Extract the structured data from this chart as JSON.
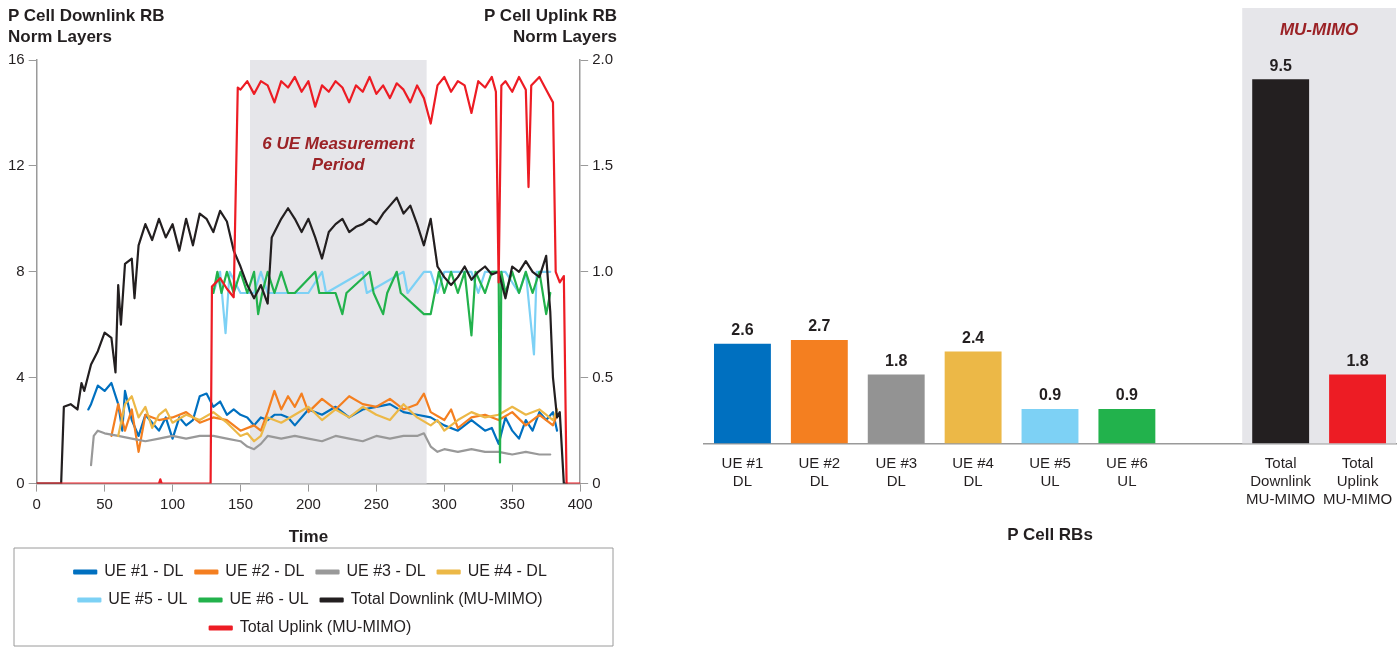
{
  "chart_data": [
    {
      "type": "line",
      "xlabel": "Time",
      "ylabel": "P Cell Downlink RB Norm Layers",
      "y2label": "P Cell Uplink RB Norm Layers",
      "xlim": [
        0,
        400
      ],
      "xticks": [
        0,
        50,
        100,
        150,
        200,
        250,
        300,
        350,
        400
      ],
      "ylim": [
        0,
        16
      ],
      "yticks": [
        0,
        4,
        8,
        12,
        16
      ],
      "y2lim": [
        0,
        2
      ],
      "y2ticks": [
        0,
        0.5,
        {
          "value": 1,
          "label": "1.0"
        },
        1.5,
        {
          "value": 2,
          "label": "2.0"
        }
      ],
      "bands": [
        {
          "axis": "x",
          "from": 157,
          "to": 287,
          "label": "6 UE Measurement Period",
          "color": "#e6e6ea"
        }
      ],
      "legend": "bottom",
      "marker": "none",
      "series": [
        {
          "name": "UE #1 - DL",
          "color": "#0070c0",
          "x": [
            38,
            40,
            45,
            50,
            55,
            60,
            63,
            65,
            70,
            75,
            80,
            85,
            90,
            95,
            100,
            105,
            110,
            115,
            120,
            125,
            130,
            135,
            140,
            145,
            150,
            155,
            160,
            165,
            170,
            175,
            180,
            185,
            190,
            200,
            210,
            220,
            230,
            240,
            250,
            260,
            270,
            280,
            290,
            300,
            310,
            320,
            330,
            335,
            340,
            345,
            350,
            355,
            360,
            365,
            370,
            375,
            380,
            383
          ],
          "values": [
            2.8,
            3.0,
            3.7,
            3.5,
            3.8,
            3.0,
            2.0,
            3.5,
            2.4,
            1.8,
            2.6,
            2.3,
            2.0,
            2.5,
            1.7,
            2.5,
            2.2,
            2.4,
            3.3,
            3.4,
            2.9,
            3.1,
            2.6,
            2.8,
            2.6,
            2.5,
            2.2,
            2.5,
            2.4,
            2.6,
            2.6,
            2.5,
            2.2,
            2.8,
            2.6,
            2.9,
            2.5,
            2.8,
            2.9,
            3.0,
            2.7,
            2.6,
            2.5,
            2.2,
            2.0,
            2.4,
            2.0,
            2.1,
            1.5,
            2.5,
            2.0,
            1.7,
            2.4,
            2.0,
            2.7,
            2.4,
            2.7,
            2.0
          ]
        },
        {
          "name": "UE #2 - DL",
          "color": "#f47f20",
          "x": [
            55,
            60,
            65,
            70,
            75,
            80,
            90,
            100,
            110,
            120,
            130,
            140,
            150,
            160,
            165,
            170,
            175,
            180,
            185,
            190,
            195,
            200,
            210,
            220,
            230,
            240,
            250,
            260,
            270,
            280,
            285,
            290,
            300,
            305,
            310,
            320,
            330,
            340,
            350,
            360,
            370,
            380,
            383
          ],
          "values": [
            1.8,
            3.0,
            2.0,
            2.8,
            1.2,
            2.6,
            2.4,
            2.5,
            2.7,
            2.3,
            2.5,
            2.4,
            2.0,
            2.2,
            2.0,
            2.7,
            3.5,
            2.8,
            3.3,
            2.9,
            3.4,
            2.7,
            3.2,
            2.8,
            3.3,
            3.0,
            2.9,
            3.2,
            2.8,
            3.0,
            3.4,
            2.7,
            2.4,
            2.8,
            2.1,
            2.5,
            2.6,
            2.4,
            2.7,
            2.2,
            2.6,
            2.2,
            2.6
          ]
        },
        {
          "name": "UE #3 - DL",
          "color": "#999999",
          "x": [
            40,
            42,
            45,
            50,
            60,
            70,
            80,
            90,
            100,
            110,
            120,
            130,
            140,
            150,
            155,
            160,
            165,
            170,
            180,
            190,
            200,
            210,
            220,
            230,
            240,
            250,
            260,
            270,
            280,
            285,
            290,
            295,
            300,
            310,
            320,
            330,
            340,
            350,
            360,
            370,
            378
          ],
          "values": [
            0.7,
            1.8,
            2.0,
            1.9,
            1.8,
            1.7,
            1.6,
            1.7,
            1.8,
            1.7,
            1.8,
            1.8,
            1.7,
            1.6,
            1.4,
            1.3,
            1.5,
            1.8,
            1.7,
            1.8,
            1.7,
            1.6,
            1.8,
            1.7,
            1.6,
            1.8,
            1.7,
            1.8,
            1.8,
            1.9,
            1.4,
            1.2,
            1.3,
            1.2,
            1.3,
            1.2,
            1.2,
            1.1,
            1.2,
            1.1,
            1.1
          ]
        },
        {
          "name": "UE #4 - DL",
          "color": "#ecb847",
          "x": [
            60,
            65,
            70,
            75,
            80,
            85,
            90,
            95,
            100,
            110,
            120,
            130,
            140,
            150,
            155,
            160,
            165,
            170,
            180,
            190,
            200,
            210,
            220,
            230,
            240,
            250,
            260,
            270,
            280,
            290,
            295,
            300,
            310,
            320,
            330,
            340,
            350,
            360,
            370,
            380,
            383
          ],
          "values": [
            1.8,
            3.0,
            3.3,
            2.5,
            2.9,
            2.1,
            2.6,
            2.8,
            2.3,
            2.6,
            2.4,
            2.7,
            2.3,
            1.8,
            1.9,
            1.6,
            1.8,
            2.5,
            2.3,
            2.6,
            2.9,
            2.4,
            2.8,
            2.5,
            2.9,
            2.6,
            2.4,
            3.0,
            2.5,
            2.2,
            2.4,
            2.0,
            2.4,
            2.7,
            2.5,
            2.6,
            2.9,
            2.6,
            2.8,
            2.4,
            2.8
          ]
        },
        {
          "name": "UE #5 - UL",
          "color": "#7dd1f5",
          "axis": "y2",
          "x": [
            130,
            135,
            139,
            142,
            150,
            160,
            165,
            170,
            200,
            210,
            213,
            240,
            243,
            270,
            273,
            285,
            290,
            295,
            300,
            320,
            325,
            330,
            345,
            355,
            360,
            366,
            368,
            378
          ],
          "values": [
            0.9,
            1.0,
            0.71,
            1.0,
            0.9,
            0.9,
            1.0,
            0.9,
            0.9,
            1.0,
            0.9,
            1.0,
            0.9,
            1.0,
            0.9,
            1.0,
            1.0,
            0.9,
            1.0,
            1.0,
            0.9,
            1.0,
            1.0,
            0.9,
            1.0,
            0.61,
            1.0,
            1.0
          ]
        },
        {
          "name": "UE #6 - UL",
          "color": "#22b24c",
          "axis": "y2",
          "x": [
            130,
            133,
            136,
            140,
            145,
            150,
            155,
            160,
            163,
            166,
            170,
            175,
            180,
            185,
            190,
            205,
            208,
            220,
            225,
            228,
            245,
            248,
            255,
            258,
            265,
            268,
            285,
            290,
            293,
            296,
            300,
            305,
            310,
            315,
            320,
            323,
            330,
            335,
            340,
            341,
            342,
            345,
            350,
            355,
            360,
            365,
            370,
            375,
            378
          ],
          "values": [
            0.9,
            1.0,
            0.9,
            1.0,
            0.9,
            1.0,
            0.9,
            1.0,
            0.8,
            0.9,
            1.0,
            0.9,
            1.0,
            0.9,
            0.9,
            1.0,
            0.9,
            0.9,
            0.8,
            0.9,
            1.0,
            0.9,
            0.8,
            0.9,
            1.0,
            0.9,
            0.8,
            0.8,
            0.9,
            1.0,
            0.9,
            1.0,
            0.9,
            1.0,
            0.7,
            1.0,
            0.9,
            1.0,
            1.0,
            0.1,
            1.0,
            0.9,
            1.0,
            0.9,
            1.0,
            0.9,
            1.0,
            0.8,
            0.9
          ]
        },
        {
          "name": "Total Downlink (MU-MIMO)",
          "color": "#231f20",
          "x": [
            0,
            18,
            20,
            25,
            30,
            33,
            35,
            40,
            45,
            50,
            55,
            58,
            60,
            62,
            65,
            70,
            72,
            75,
            80,
            85,
            90,
            95,
            100,
            105,
            110,
            115,
            120,
            125,
            130,
            135,
            140,
            145,
            150,
            155,
            160,
            165,
            170,
            173,
            180,
            185,
            190,
            195,
            200,
            205,
            210,
            215,
            220,
            225,
            230,
            235,
            240,
            245,
            250,
            255,
            260,
            265,
            270,
            275,
            280,
            285,
            290,
            295,
            300,
            305,
            310,
            315,
            320,
            325,
            330,
            335,
            340,
            345,
            350,
            355,
            360,
            365,
            370,
            375,
            378,
            380,
            383,
            385,
            388,
            390
          ],
          "values": [
            0,
            0,
            2.9,
            3.0,
            2.8,
            3.8,
            3.5,
            4.5,
            5.0,
            5.7,
            5.5,
            4.2,
            7.5,
            6.0,
            8.3,
            8.5,
            7.0,
            9.0,
            9.8,
            9.2,
            10.0,
            9.3,
            9.8,
            8.8,
            10.0,
            9.0,
            10.2,
            10.0,
            9.5,
            10.3,
            9.9,
            8.8,
            8.2,
            7.5,
            7.0,
            7.5,
            6.8,
            9.3,
            10.0,
            10.4,
            10.0,
            9.5,
            10.0,
            9.3,
            8.5,
            9.5,
            9.8,
            10.0,
            9.5,
            9.7,
            9.8,
            10.0,
            9.8,
            10.2,
            10.5,
            10.8,
            10.2,
            10.5,
            9.8,
            9.0,
            10.0,
            8.2,
            7.8,
            7.5,
            7.8,
            8.2,
            7.7,
            8.0,
            8.2,
            7.9,
            8.0,
            7.0,
            8.2,
            8.0,
            8.4,
            8.0,
            7.8,
            8.6,
            6.5,
            4.0,
            2.5,
            2.7,
            0,
            0
          ]
        },
        {
          "name": "Total Uplink (MU-MIMO)",
          "color": "#ed1c24",
          "axis": "y2",
          "x": [
            0,
            90,
            91,
            92,
            128,
            129,
            135,
            140,
            145,
            148,
            150,
            155,
            160,
            165,
            170,
            175,
            180,
            185,
            190,
            195,
            200,
            205,
            210,
            215,
            220,
            225,
            230,
            235,
            240,
            245,
            250,
            255,
            260,
            265,
            270,
            275,
            280,
            285,
            290,
            295,
            300,
            305,
            310,
            315,
            320,
            325,
            330,
            335,
            338,
            340,
            342,
            345,
            350,
            355,
            360,
            362,
            364,
            370,
            375,
            380,
            382,
            385,
            388,
            390,
            400
          ],
          "values": [
            0,
            0,
            0.02,
            0,
            0,
            0.93,
            0.97,
            0.92,
            0.88,
            1.87,
            1.86,
            1.9,
            1.84,
            1.9,
            1.88,
            1.8,
            1.9,
            1.87,
            1.92,
            1.85,
            1.9,
            1.78,
            1.88,
            1.85,
            1.9,
            1.87,
            1.8,
            1.88,
            1.85,
            1.92,
            1.84,
            1.88,
            1.82,
            1.89,
            1.86,
            1.8,
            1.88,
            1.82,
            1.7,
            1.88,
            1.92,
            1.85,
            1.9,
            1.88,
            1.75,
            1.9,
            1.87,
            1.92,
            1.85,
            0.95,
            1.88,
            1.9,
            1.85,
            1.92,
            1.86,
            1.4,
            1.88,
            1.92,
            1.86,
            1.8,
            1.0,
            0.95,
            0.98,
            0,
            0
          ]
        }
      ]
    },
    {
      "type": "bar",
      "xlabel": "P Cell RBs",
      "categories": [
        "UE #1 DL",
        "UE #2 DL",
        "UE #3 DL",
        "UE #4 DL",
        "UE #5 UL",
        "UE #6 UL",
        null,
        "Total Downlink MU-MIMO",
        "Total Uplink MU-MIMO"
      ],
      "values": [
        2.6,
        2.7,
        1.8,
        2.4,
        0.9,
        0.9,
        null,
        9.5,
        1.8
      ],
      "colors": [
        "#0070c0",
        "#f47f20",
        "#939393",
        "#ecb847",
        "#7dd1f5",
        "#22b24c",
        "#ffffff",
        "#231f20",
        "#ed1c24"
      ],
      "data_labels": true,
      "bands": [
        {
          "axis": "x",
          "from": "Total Downlink MU-MIMO",
          "to": "Total Uplink MU-MIMO",
          "label": "MU-MIMO",
          "color": "#e6e6ea"
        }
      ]
    }
  ]
}
